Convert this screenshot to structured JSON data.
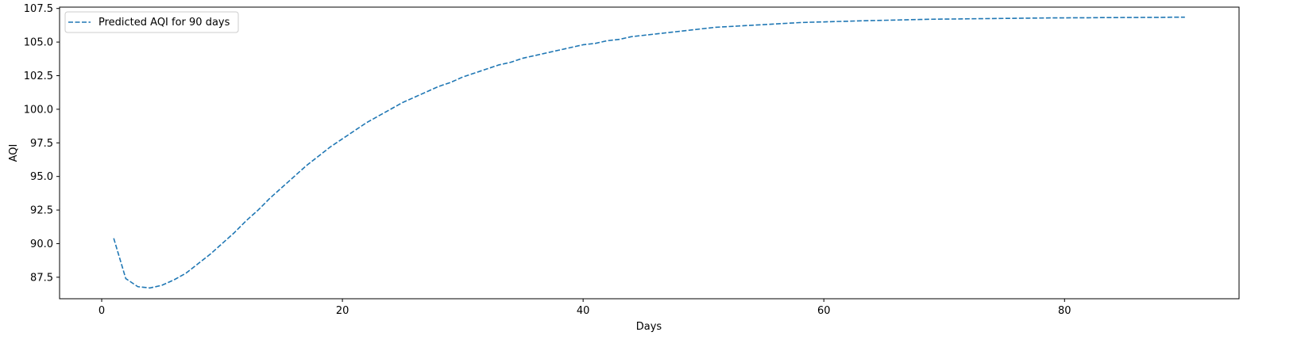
{
  "chart_data": {
    "type": "line",
    "xlabel": "Days",
    "ylabel": "AQI",
    "xlim": [
      -3.5,
      94.5
    ],
    "ylim": [
      85.9,
      107.6
    ],
    "xticks": [
      0,
      20,
      40,
      60,
      80
    ],
    "yticks": [
      "87.5",
      "90.0",
      "92.5",
      "95.0",
      "97.5",
      "100.0",
      "102.5",
      "105.0",
      "107.5"
    ],
    "grid": false,
    "legend_position": "top-left",
    "series": [
      {
        "name": "Predicted AQI for 90 days",
        "color": "#1f77b4",
        "line_style": "dashed",
        "x": [
          1,
          2,
          3,
          4,
          5,
          6,
          7,
          8,
          9,
          10,
          11,
          12,
          13,
          14,
          15,
          16,
          17,
          18,
          19,
          20,
          21,
          22,
          23,
          24,
          25,
          26,
          27,
          28,
          29,
          30,
          31,
          32,
          33,
          34,
          35,
          36,
          37,
          38,
          39,
          40,
          41,
          42,
          43,
          44,
          45,
          46,
          47,
          48,
          49,
          50,
          51,
          52,
          53,
          54,
          55,
          56,
          57,
          58,
          59,
          60,
          61,
          62,
          63,
          64,
          65,
          66,
          67,
          68,
          69,
          70,
          71,
          72,
          73,
          74,
          75,
          76,
          77,
          78,
          79,
          80,
          81,
          82,
          83,
          84,
          85,
          86,
          87,
          88,
          89,
          90
        ],
        "y": [
          90.4,
          87.4,
          86.8,
          86.7,
          86.9,
          87.3,
          87.8,
          88.5,
          89.2,
          90.0,
          90.8,
          91.7,
          92.5,
          93.4,
          94.2,
          95.0,
          95.8,
          96.5,
          97.2,
          97.8,
          98.4,
          99.0,
          99.5,
          100.0,
          100.5,
          100.9,
          101.3,
          101.7,
          102.0,
          102.4,
          102.7,
          103.0,
          103.3,
          103.5,
          103.8,
          104.0,
          104.2,
          104.4,
          104.6,
          104.8,
          104.9,
          105.1,
          105.2,
          105.4,
          105.5,
          105.6,
          105.7,
          105.8,
          105.9,
          106.0,
          106.1,
          106.15,
          106.2,
          106.25,
          106.3,
          106.35,
          106.4,
          106.45,
          106.48,
          106.5,
          106.53,
          106.55,
          106.58,
          106.6,
          106.62,
          106.64,
          106.66,
          106.68,
          106.7,
          106.71,
          106.72,
          106.73,
          106.74,
          106.75,
          106.76,
          106.77,
          106.78,
          106.79,
          106.8,
          106.8,
          106.81,
          106.81,
          106.82,
          106.82,
          106.83,
          106.83,
          106.84,
          106.84,
          106.85,
          106.85
        ]
      }
    ]
  }
}
